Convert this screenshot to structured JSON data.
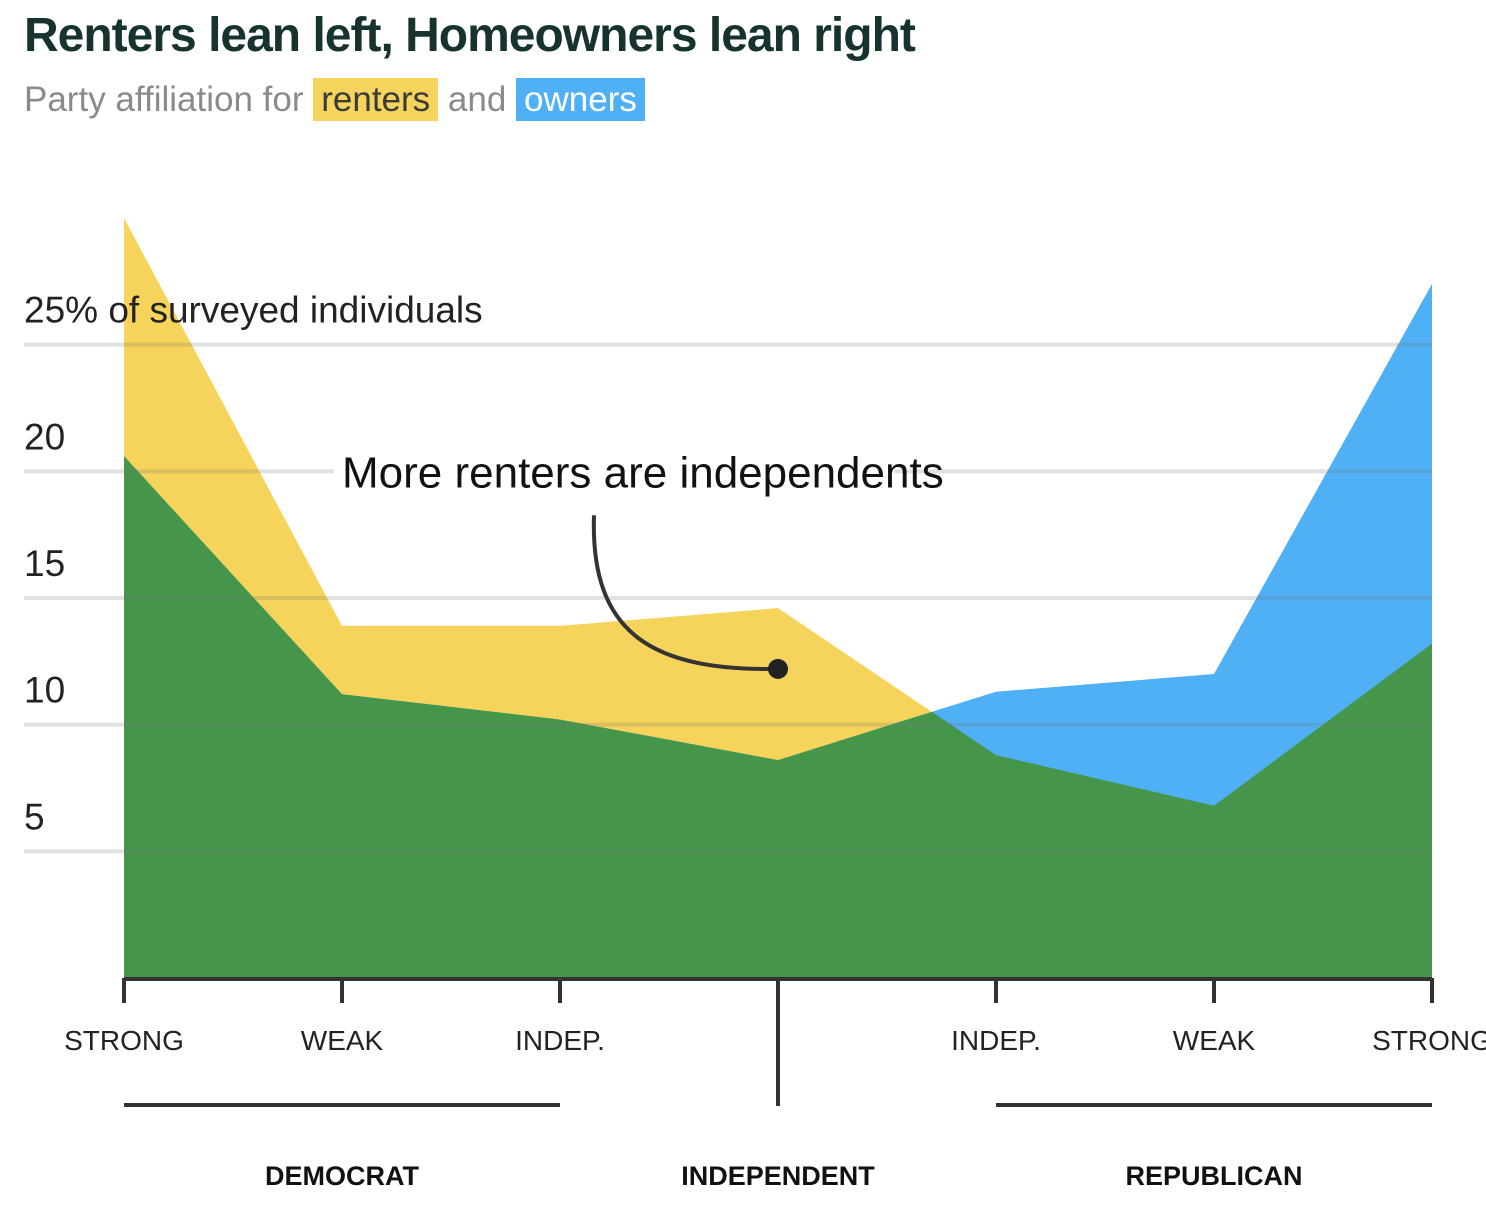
{
  "header": {
    "title": "Renters lean left, Homeowners lean right",
    "subtitle_prefix": "Party affiliation for",
    "subtitle_renters": "renters",
    "subtitle_and": "and",
    "subtitle_owners": "owners"
  },
  "colors": {
    "renters": "#f6d45c",
    "owners": "#4fb0f5",
    "overlap": "#45964a",
    "title": "#17332f"
  },
  "chart_data": {
    "type": "area",
    "title": "Renters lean left, Homeowners lean right",
    "subtitle": "Party affiliation for renters and owners",
    "categories": [
      "STRONG",
      "WEAK",
      "INDEP.",
      "",
      "INDEP.",
      "WEAK",
      "STRONG"
    ],
    "groups": [
      {
        "label": "DEMOCRAT",
        "from": 0,
        "to": 2
      },
      {
        "label": "INDEPENDENT",
        "at": 3
      },
      {
        "label": "REPUBLICAN",
        "from": 4,
        "to": 6
      }
    ],
    "series": [
      {
        "name": "renters",
        "values": [
          30,
          13.9,
          13.9,
          14.6,
          8.8,
          6.8,
          13.2
        ]
      },
      {
        "name": "owners",
        "values": [
          20.6,
          11.2,
          10.2,
          8.6,
          11.3,
          12.0,
          27.4
        ]
      }
    ],
    "y_ticks": [
      {
        "value": 25,
        "label": "25% of surveyed individuals"
      },
      {
        "value": 20,
        "label": "20"
      },
      {
        "value": 15,
        "label": "15"
      },
      {
        "value": 10,
        "label": "10"
      },
      {
        "value": 5,
        "label": "5"
      }
    ],
    "ylim": [
      0,
      30
    ],
    "grid": true,
    "annotation": {
      "text": "More renters are independents",
      "category_index": 3,
      "value": 12.2
    }
  }
}
